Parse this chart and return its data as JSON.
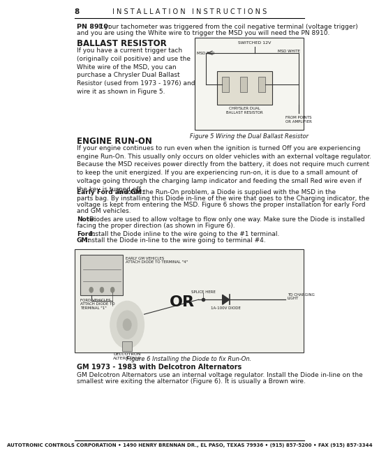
{
  "page_number": "8",
  "header_text": "I N S T A L L A T I O N   I N S T R U C T I O N S",
  "background_color": "#ffffff",
  "text_color": "#1a1a1a",
  "ballast_title": "BALLAST RESISTOR",
  "fig5_caption": "Figure 5 Wiring the Dual Ballast Resistor",
  "engine_runon_title": "ENGINE RUN-ON",
  "fig6_caption": "Figure 6 Installing the Diode to fix Run-On.",
  "gm_1973_title": "GM 1973 - 1983 with Delcotron Alternators",
  "footer_text": "AUTOTRONIC CONTROLS CORPORATION • 1490 HENRY BRENNAN DR., EL PASO, TEXAS 79936 • (915) 857-5200 • FAX (915) 857-3344",
  "header_line_color": "#000000",
  "footer_line_color": "#000000"
}
